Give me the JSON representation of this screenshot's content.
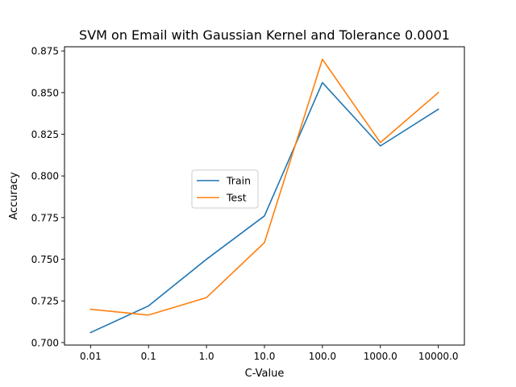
{
  "chart_data": {
    "type": "line",
    "title": "SVM on Email with Gaussian Kernel and Tolerance 0.0001",
    "xlabel": "C-Value",
    "ylabel": "Accuracy",
    "categories": [
      "0.01",
      "0.1",
      "1.0",
      "10.0",
      "100.0",
      "1000.0",
      "10000.0"
    ],
    "y_ticks": [
      "0.700",
      "0.725",
      "0.750",
      "0.775",
      "0.800",
      "0.825",
      "0.850",
      "0.875"
    ],
    "ylim": [
      0.6985,
      0.8775
    ],
    "grid": false,
    "legend": "center",
    "series": [
      {
        "name": "Train",
        "color": "#1f77b4",
        "values": [
          0.706,
          0.722,
          0.75,
          0.776,
          0.856,
          0.818,
          0.84
        ]
      },
      {
        "name": "Test",
        "color": "#ff7f0e",
        "values": [
          0.72,
          0.7165,
          0.727,
          0.76,
          0.87,
          0.82,
          0.85
        ]
      }
    ]
  }
}
